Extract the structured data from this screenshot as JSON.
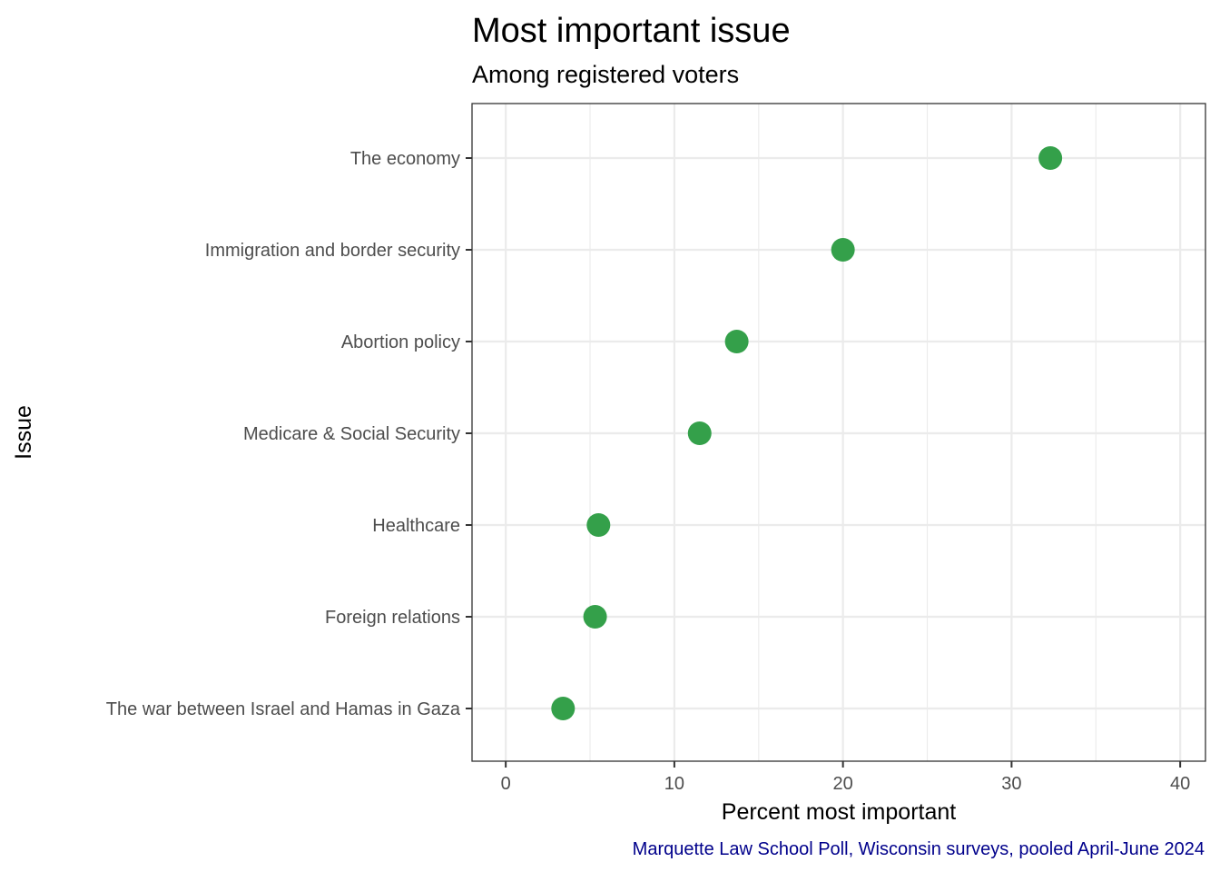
{
  "chart_data": {
    "type": "scatter",
    "title": "Most important issue",
    "subtitle": "Among registered voters",
    "xlabel": "Percent most important",
    "ylabel": "Issue",
    "caption": "Marquette Law School Poll, Wisconsin surveys, pooled April-June 2024",
    "xlim": [
      -2,
      41.5
    ],
    "x_ticks": [
      0,
      10,
      20,
      30,
      40
    ],
    "x_minor_ticks": [
      5,
      15,
      25,
      35
    ],
    "grid": true,
    "legend": "none",
    "categories": [
      "The economy",
      "Immigration and border security",
      "Abortion policy",
      "Medicare & Social Security",
      "Healthcare",
      "Foreign relations",
      "The war between Israel and Hamas in Gaza"
    ],
    "values": [
      32.3,
      20.0,
      13.7,
      11.5,
      5.5,
      5.3,
      3.4
    ],
    "colors": {
      "point": "#34a04a",
      "caption": "#00008b"
    }
  }
}
